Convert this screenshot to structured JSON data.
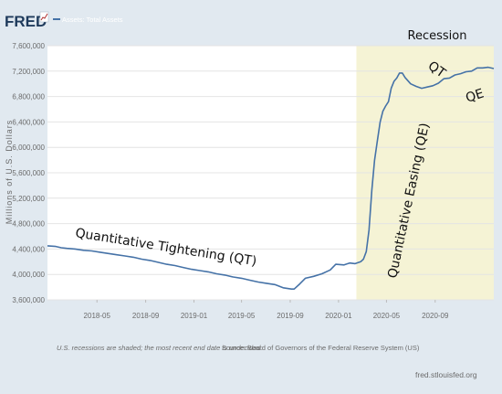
{
  "header": {
    "logo": "FRED",
    "legend_label": "Assets: Total Assets"
  },
  "chart_data": {
    "type": "line",
    "title": "",
    "xlabel": "",
    "ylabel": "Millions of U.S. Dollars",
    "ylim": [
      3600000,
      7600000
    ],
    "y_ticks": [
      3600000,
      4000000,
      4400000,
      4800000,
      5200000,
      5600000,
      6000000,
      6400000,
      6800000,
      7200000,
      7600000
    ],
    "y_tick_labels": [
      "3,600,000",
      "4,000,000",
      "4,400,000",
      "4,800,000",
      "5,200,000",
      "5,600,000",
      "6,000,000",
      "6,400,000",
      "6,800,000",
      "7,200,000",
      "7,600,000"
    ],
    "xlim": [
      "2017-12-27",
      "2021-01-27"
    ],
    "x_ticks": [
      "2018-05-01",
      "2018-09-01",
      "2019-01-01",
      "2019-05-01",
      "2019-09-01",
      "2020-01-01",
      "2020-05-01",
      "2020-09-01"
    ],
    "x_tick_labels": [
      "2018-05",
      "2018-09",
      "2019-01",
      "2019-05",
      "2019-09",
      "2020-01",
      "2020-05",
      "2020-09"
    ],
    "grid": true,
    "series": [
      {
        "name": "Assets: Total Assets",
        "color": "#4572a7",
        "points": [
          [
            "2017-12-27",
            4450000
          ],
          [
            "2018-01-17",
            4440000
          ],
          [
            "2018-01-31",
            4420000
          ],
          [
            "2018-02-14",
            4410000
          ],
          [
            "2018-03-07",
            4400000
          ],
          [
            "2018-03-28",
            4380000
          ],
          [
            "2018-04-18",
            4370000
          ],
          [
            "2018-05-09",
            4350000
          ],
          [
            "2018-05-30",
            4330000
          ],
          [
            "2018-06-20",
            4310000
          ],
          [
            "2018-07-11",
            4290000
          ],
          [
            "2018-08-01",
            4270000
          ],
          [
            "2018-08-22",
            4240000
          ],
          [
            "2018-09-12",
            4220000
          ],
          [
            "2018-10-03",
            4190000
          ],
          [
            "2018-10-24",
            4160000
          ],
          [
            "2018-11-14",
            4140000
          ],
          [
            "2018-12-05",
            4110000
          ],
          [
            "2018-12-26",
            4080000
          ],
          [
            "2019-01-16",
            4060000
          ],
          [
            "2019-02-06",
            4040000
          ],
          [
            "2019-02-27",
            4010000
          ],
          [
            "2019-03-20",
            3990000
          ],
          [
            "2019-04-10",
            3960000
          ],
          [
            "2019-05-01",
            3940000
          ],
          [
            "2019-05-22",
            3910000
          ],
          [
            "2019-06-12",
            3880000
          ],
          [
            "2019-07-03",
            3860000
          ],
          [
            "2019-07-24",
            3840000
          ],
          [
            "2019-08-14",
            3790000
          ],
          [
            "2019-09-04",
            3770000
          ],
          [
            "2019-09-11",
            3770000
          ],
          [
            "2019-09-25",
            3850000
          ],
          [
            "2019-10-09",
            3940000
          ],
          [
            "2019-10-30",
            3970000
          ],
          [
            "2019-11-20",
            4010000
          ],
          [
            "2019-12-11",
            4070000
          ],
          [
            "2019-12-25",
            4160000
          ],
          [
            "2020-01-15",
            4150000
          ],
          [
            "2020-01-29",
            4180000
          ],
          [
            "2020-02-12",
            4170000
          ],
          [
            "2020-02-26",
            4200000
          ],
          [
            "2020-03-04",
            4240000
          ],
          [
            "2020-03-11",
            4360000
          ],
          [
            "2020-03-18",
            4700000
          ],
          [
            "2020-03-25",
            5330000
          ],
          [
            "2020-04-01",
            5800000
          ],
          [
            "2020-04-08",
            6100000
          ],
          [
            "2020-04-15",
            6400000
          ],
          [
            "2020-04-22",
            6570000
          ],
          [
            "2020-04-29",
            6650000
          ],
          [
            "2020-05-06",
            6720000
          ],
          [
            "2020-05-13",
            6930000
          ],
          [
            "2020-05-20",
            7040000
          ],
          [
            "2020-05-27",
            7090000
          ],
          [
            "2020-06-03",
            7170000
          ],
          [
            "2020-06-10",
            7170000
          ],
          [
            "2020-06-17",
            7100000
          ],
          [
            "2020-06-24",
            7050000
          ],
          [
            "2020-07-01",
            7000000
          ],
          [
            "2020-07-15",
            6960000
          ],
          [
            "2020-07-29",
            6930000
          ],
          [
            "2020-08-12",
            6950000
          ],
          [
            "2020-08-26",
            6970000
          ],
          [
            "2020-09-09",
            7010000
          ],
          [
            "2020-09-23",
            7080000
          ],
          [
            "2020-10-07",
            7090000
          ],
          [
            "2020-10-21",
            7140000
          ],
          [
            "2020-11-04",
            7160000
          ],
          [
            "2020-11-18",
            7190000
          ],
          [
            "2020-12-02",
            7200000
          ],
          [
            "2020-12-16",
            7250000
          ],
          [
            "2020-12-30",
            7250000
          ],
          [
            "2021-01-13",
            7260000
          ],
          [
            "2021-01-27",
            7240000
          ]
        ]
      }
    ],
    "recession": {
      "start": "2020-02-15",
      "end": "2021-01-27",
      "label": "Recession",
      "color": "#f5f3d5"
    },
    "annotations": [
      {
        "text": "Quantitative Tightening (QT)"
      },
      {
        "text": "Quantitative Easing (QE)"
      },
      {
        "text": "QT"
      },
      {
        "text": "QE"
      }
    ]
  },
  "footer": {
    "note": "U.S. recessions are shaded; the most recent end date is undecided.",
    "source": "Source: Board of Governors of the Federal Reserve System (US)",
    "url": "fred.stlouisfed.org"
  }
}
